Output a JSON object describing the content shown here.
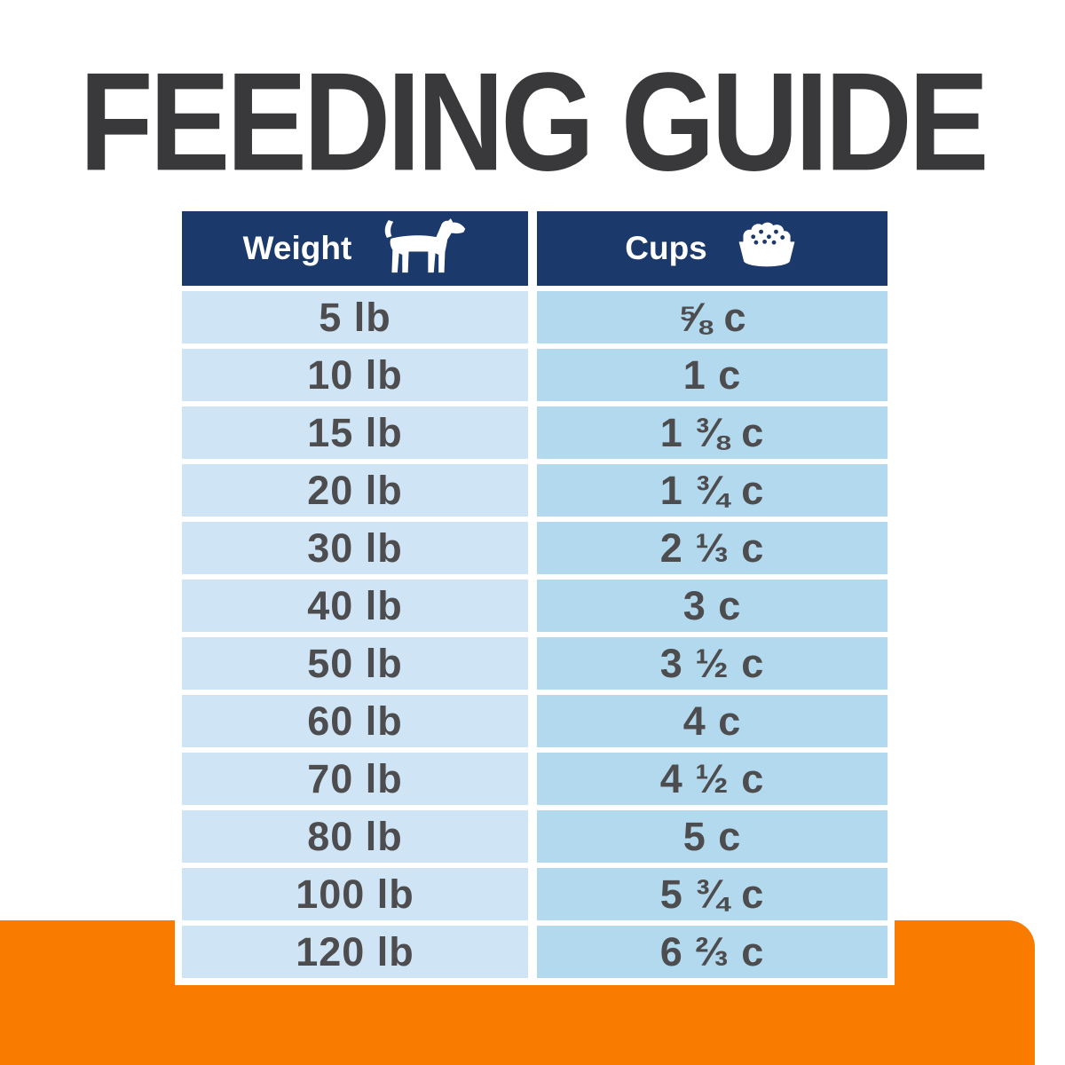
{
  "title": {
    "text": "FEEDING GUIDE",
    "color": "#39393b"
  },
  "table": {
    "header": {
      "weight_label": "Weight",
      "cups_label": "Cups",
      "weight_icon": "dog-icon",
      "cups_icon": "food-bowl-icon",
      "bg_color": "#1b3a6b",
      "text_color": "#ffffff"
    },
    "colors": {
      "weight_cell_bg": "#cfe4f4",
      "cups_cell_bg": "#b3d9ee",
      "cell_text": "#4d4d4f"
    },
    "rows": [
      {
        "weight": "5 lb",
        "cups": "⅝ c"
      },
      {
        "weight": "10 lb",
        "cups": "1 c"
      },
      {
        "weight": "15 lb",
        "cups": "1 ⅜ c"
      },
      {
        "weight": "20 lb",
        "cups": "1 ¾ c"
      },
      {
        "weight": "30 lb",
        "cups": "2 ⅓ c"
      },
      {
        "weight": "40 lb",
        "cups": "3 c"
      },
      {
        "weight": "50 lb",
        "cups": "3 ½ c"
      },
      {
        "weight": "60 lb",
        "cups": "4 c"
      },
      {
        "weight": "70 lb",
        "cups": "4 ½ c"
      },
      {
        "weight": "80 lb",
        "cups": "5 c"
      },
      {
        "weight": "100 lb",
        "cups": "5 ¾ c"
      },
      {
        "weight": "120 lb",
        "cups": "6 ⅔ c"
      }
    ]
  },
  "footer_band": {
    "color": "#f97b00"
  },
  "chart_data": {
    "type": "table",
    "title": "FEEDING GUIDE",
    "columns": [
      "Weight",
      "Cups"
    ],
    "rows": [
      [
        "5 lb",
        "⅝ c"
      ],
      [
        "10 lb",
        "1 c"
      ],
      [
        "15 lb",
        "1 ⅜ c"
      ],
      [
        "20 lb",
        "1 ¾ c"
      ],
      [
        "30 lb",
        "2 ⅓ c"
      ],
      [
        "40 lb",
        "3 c"
      ],
      [
        "50 lb",
        "3 ½ c"
      ],
      [
        "60 lb",
        "4 c"
      ],
      [
        "70 lb",
        "4 ½ c"
      ],
      [
        "80 lb",
        "5 c"
      ],
      [
        "100 lb",
        "5 ¾ c"
      ],
      [
        "120 lb",
        "6 ⅔ c"
      ]
    ]
  }
}
